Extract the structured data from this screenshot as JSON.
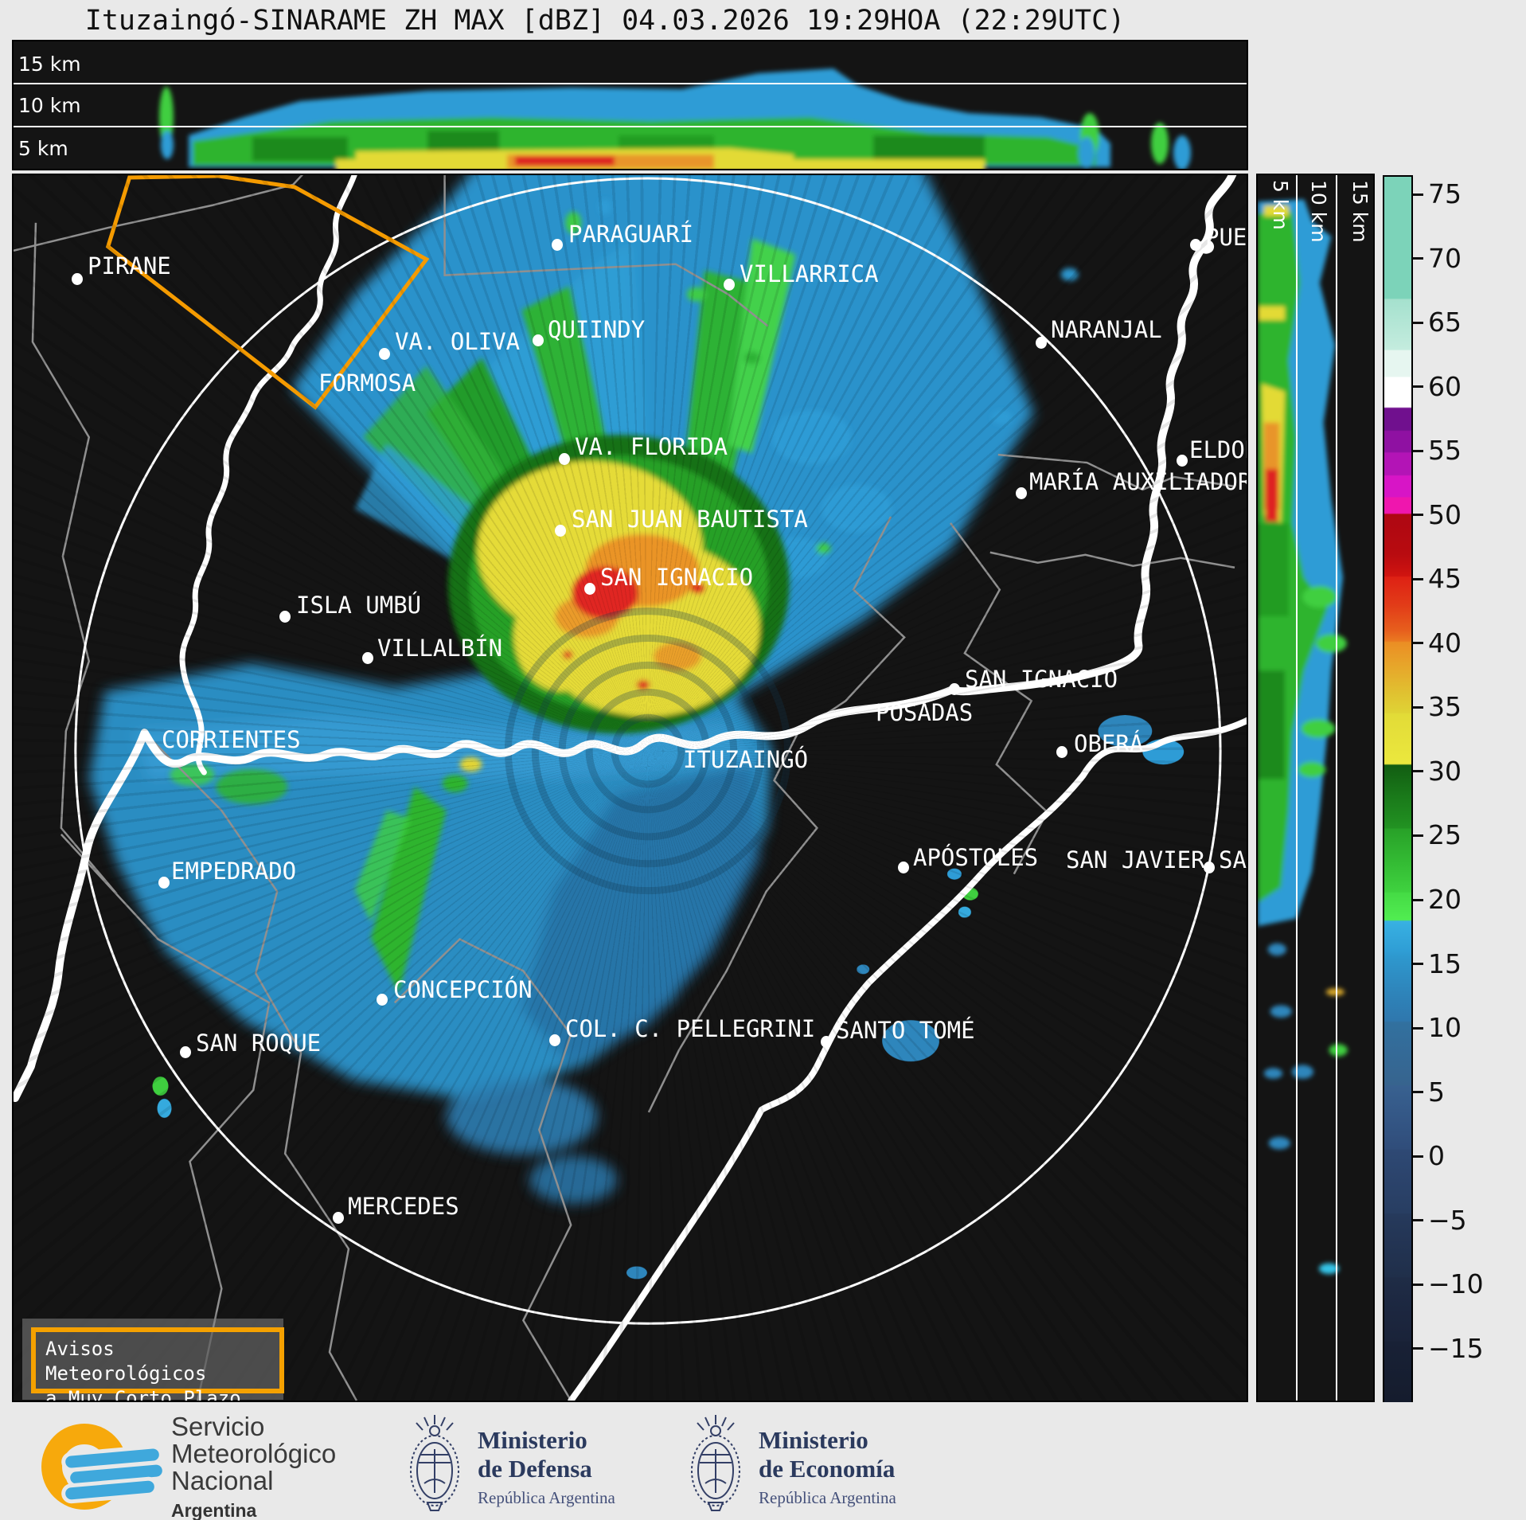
{
  "title": "Ituzaingó-SINARAME ZH MAX [dBZ] 04.03.2026 19:29HOA (22:29UTC)",
  "top_panel": {
    "height_labels": [
      "15 km",
      "10 km",
      "5 km"
    ]
  },
  "right_panel": {
    "height_labels": [
      "5 km",
      "10 km",
      "15 km"
    ]
  },
  "colorbar": {
    "unit": "dBZ",
    "ticks": [
      75,
      70,
      65,
      60,
      55,
      50,
      45,
      40,
      35,
      30,
      25,
      20,
      15,
      10,
      5,
      0,
      -5,
      -10,
      -15
    ],
    "top_value": 76.5,
    "bottom_value": -19.3,
    "stops": [
      [
        76.5,
        "#7CD3B9"
      ],
      [
        67.0,
        "#7CD3B9"
      ],
      [
        66.9,
        "#A5E1CE"
      ],
      [
        63.0,
        "#C4ECDE"
      ],
      [
        62.9,
        "#E6F6F0"
      ],
      [
        60.9,
        "#E6F6F0"
      ],
      [
        60.8,
        "#FFFFFF"
      ],
      [
        58.5,
        "#FFFFFF"
      ],
      [
        58.4,
        "#70108E"
      ],
      [
        56.7,
        "#70108E"
      ],
      [
        56.6,
        "#8F11A2"
      ],
      [
        55.0,
        "#8F11A2"
      ],
      [
        54.9,
        "#B314B6"
      ],
      [
        53.2,
        "#B314B6"
      ],
      [
        53.1,
        "#D715C6"
      ],
      [
        51.5,
        "#D715C6"
      ],
      [
        51.4,
        "#EF16AE"
      ],
      [
        50.2,
        "#EF16AE"
      ],
      [
        50.1,
        "#AE0712"
      ],
      [
        47.0,
        "#B80B10"
      ],
      [
        45.3,
        "#D01410"
      ],
      [
        45.2,
        "#DE2114"
      ],
      [
        43.0,
        "#E23C18"
      ],
      [
        41.0,
        "#E75F1D"
      ],
      [
        40.2,
        "#EA7A21"
      ],
      [
        40.1,
        "#EB8E24"
      ],
      [
        38.0,
        "#E6A92B"
      ],
      [
        36.0,
        "#E0C331"
      ],
      [
        34.6,
        "#DFD335"
      ],
      [
        34.5,
        "#E2DB37"
      ],
      [
        30.6,
        "#EBE83E"
      ],
      [
        30.5,
        "#125D12"
      ],
      [
        28.0,
        "#1A7A1A"
      ],
      [
        25.6,
        "#229222"
      ],
      [
        25.5,
        "#28A128"
      ],
      [
        23.0,
        "#33BA33"
      ],
      [
        20.6,
        "#3FD23F"
      ],
      [
        20.5,
        "#45DB45"
      ],
      [
        18.4,
        "#51ED51"
      ],
      [
        18.3,
        "#38B1E3"
      ],
      [
        16.0,
        "#2F9ED5"
      ],
      [
        15.4,
        "#2E97CD"
      ],
      [
        13.0,
        "#2E86BC"
      ],
      [
        10.5,
        "#2F77AD"
      ],
      [
        10.4,
        "#32719F"
      ],
      [
        8.0,
        "#346A97"
      ],
      [
        5.5,
        "#37648E"
      ],
      [
        5.4,
        "#386190"
      ],
      [
        3.0,
        "#345786"
      ],
      [
        0.5,
        "#304D7A"
      ],
      [
        0.4,
        "#2E4974"
      ],
      [
        -2.0,
        "#2B436B"
      ],
      [
        -4.5,
        "#283E62"
      ],
      [
        -4.6,
        "#263A5C"
      ],
      [
        -7.0,
        "#233453"
      ],
      [
        -9.5,
        "#202F4A"
      ],
      [
        -9.6,
        "#1F2C46"
      ],
      [
        -12.0,
        "#1C2740"
      ],
      [
        -14.5,
        "#1A2339"
      ],
      [
        -14.6,
        "#182136"
      ],
      [
        -19.3,
        "#151C2D"
      ]
    ]
  },
  "cities": [
    {
      "name": "PIRANE",
      "dot": [
        80,
        131
      ],
      "label": [
        93,
        97
      ]
    },
    {
      "name": "VA. OLIVA",
      "dot": [
        466,
        225
      ],
      "label": [
        479,
        192
      ]
    },
    {
      "name": "FORMOSA",
      "dot": null,
      "label": [
        383,
        244
      ]
    },
    {
      "name": "PARAGUARÍ",
      "dot": [
        683,
        88
      ],
      "label": [
        697,
        57
      ]
    },
    {
      "name": "VILLARRICA",
      "dot": [
        899,
        138
      ],
      "label": [
        912,
        107
      ]
    },
    {
      "name": "QUIINDY",
      "dot": [
        659,
        208
      ],
      "label": [
        671,
        177
      ]
    },
    {
      "name": "NARANJAL",
      "dot": [
        1291,
        211
      ],
      "label": [
        1303,
        177
      ]
    },
    {
      "name": "VA. FLORIDA",
      "dot": [
        692,
        357
      ],
      "label": [
        705,
        324
      ]
    },
    {
      "name": "SAN JUAN BAUTISTA",
      "dot": [
        687,
        447
      ],
      "label": [
        701,
        415
      ]
    },
    {
      "name": "SAN IGNACIO",
      "dot": [
        724,
        520
      ],
      "label": [
        737,
        488
      ]
    },
    {
      "name": "MARÍA AUXILIADOR",
      "dot": [
        1266,
        400
      ],
      "label": [
        1276,
        368
      ]
    },
    {
      "name": "ELDOR",
      "dot": [
        1468,
        359
      ],
      "label": [
        1477,
        328
      ]
    },
    {
      "name": "PUER",
      "dot": [
        1485,
        88
      ],
      "label": [
        1497,
        61
      ]
    },
    {
      "name": "ISLA UMBÚ",
      "dot": [
        341,
        555
      ],
      "label": [
        355,
        523
      ]
    },
    {
      "name": "VILLALBÍN",
      "dot": [
        445,
        607
      ],
      "label": [
        457,
        577
      ]
    },
    {
      "name": "CORRIENTES",
      "dot": null,
      "label": [
        186,
        692
      ]
    },
    {
      "name": "ITUZAINGÓ",
      "dot": null,
      "label": [
        841,
        717
      ]
    },
    {
      "name": "POSADAS",
      "dot": [
        1182,
        646
      ],
      "label": [
        1083,
        658
      ]
    },
    {
      "name": "SAN IGNACIO",
      "dot": null,
      "label": [
        1195,
        616
      ]
    },
    {
      "name": "OBERÁ",
      "dot": [
        1317,
        725
      ],
      "label": [
        1332,
        697
      ]
    },
    {
      "name": "APÓSTOLES",
      "dot": [
        1118,
        870
      ],
      "label": [
        1130,
        840
      ]
    },
    {
      "name": "SAN JAVIER",
      "dot": null,
      "label": [
        1322,
        843
      ]
    },
    {
      "name": "SAI",
      "dot": [
        1502,
        870
      ],
      "label": [
        1514,
        843
      ]
    },
    {
      "name": "EMPEDRADO",
      "dot": [
        189,
        889
      ],
      "label": [
        198,
        857
      ]
    },
    {
      "name": "CONCEPCIÓN",
      "dot": [
        463,
        1036
      ],
      "label": [
        477,
        1006
      ]
    },
    {
      "name": "SAN ROQUE",
      "dot": [
        216,
        1102
      ],
      "label": [
        229,
        1073
      ]
    },
    {
      "name": "COL. C. PELLEGRINI",
      "dot": [
        680,
        1087
      ],
      "label": [
        693,
        1055
      ]
    },
    {
      "name": "SANTO TOMÉ",
      "dot": [
        1021,
        1089
      ],
      "label": [
        1033,
        1057
      ]
    },
    {
      "name": "MERCEDES",
      "dot": [
        408,
        1310
      ],
      "label": [
        420,
        1278
      ]
    }
  ],
  "warning_box": {
    "line1": "Avisos Meteorológicos",
    "line2": "a Muy Corto Plazo",
    "border_color": "#F5A100"
  },
  "footer": {
    "smn": {
      "line1": "Servicio",
      "line2": "Meteorológico",
      "line3": "Nacional",
      "line4": "Argentina"
    },
    "defensa": {
      "line1": "Ministerio",
      "line2": "de Defensa",
      "line3": "República Argentina"
    },
    "economia": {
      "line1": "Ministerio",
      "line2": "de Economía",
      "line3": "República Argentina"
    }
  },
  "colors": {
    "warning_orange": "#F5A100",
    "smn_orange": "#F7A90C",
    "smn_blue": "#3FA8DC",
    "ministry_navy": "#2B3A5E",
    "panel_black": "#141414"
  }
}
